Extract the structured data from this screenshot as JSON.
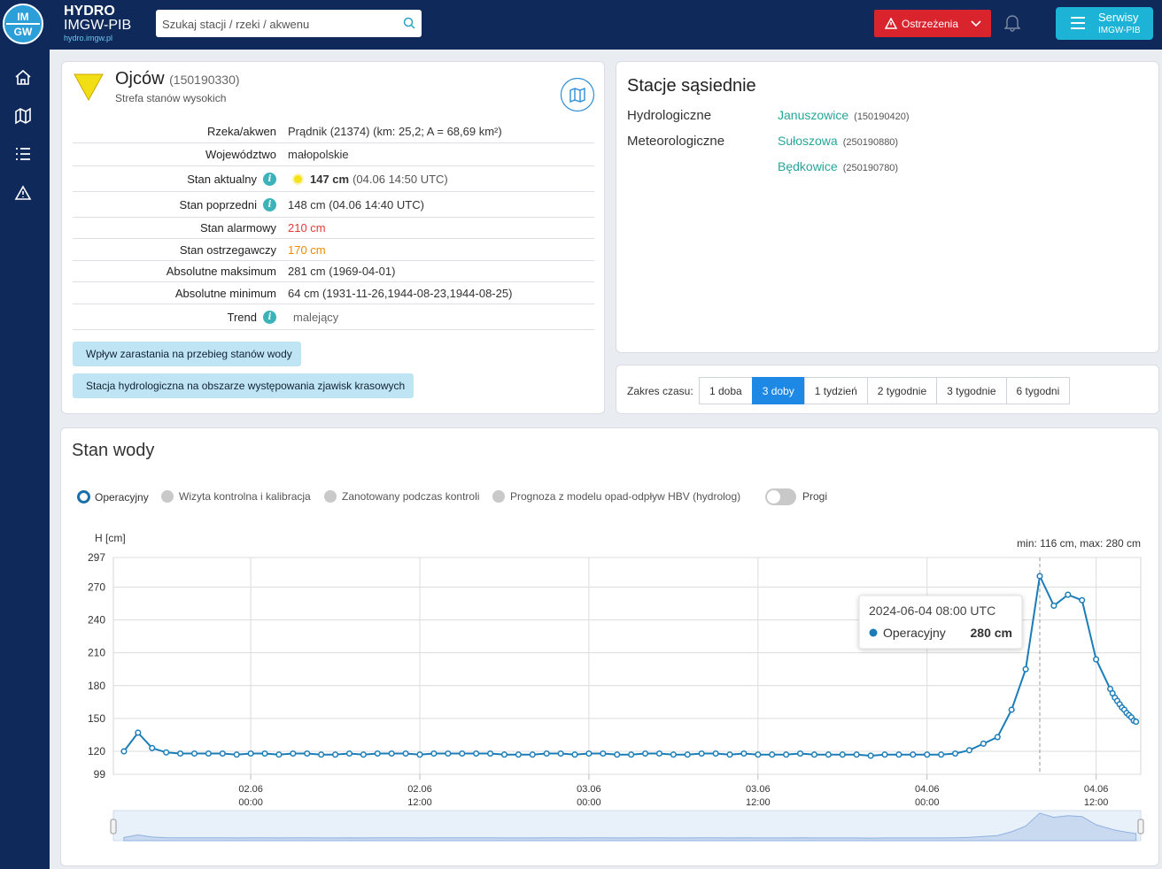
{
  "header": {
    "logo_mark": [
      "IM",
      "GW"
    ],
    "logo_line1": "HYDRO",
    "logo_line2": "IMGW-PIB",
    "logo_url": "hydro.imgw.pl",
    "search_placeholder": "Szukaj stacji / rzeki / akwenu",
    "warnings": "Ostrzeżenia",
    "services": "Serwisy",
    "services_sub": "IMGW-PIB"
  },
  "station": {
    "name": "Ojców",
    "id": "(150190330)",
    "zone": "Strefa stanów wysokich",
    "rows": [
      {
        "label": "Rzeka/akwen",
        "value": "Prądnik (21374) (km: 25,2; A = 68,69 km²)"
      },
      {
        "label": "Województwo",
        "value": "małopolskie"
      },
      {
        "label": "Stan aktualny",
        "value": "147 cm",
        "note": "(04.06 14:50 UTC)",
        "info": true,
        "marker": "#f5e11a"
      },
      {
        "label": "Stan poprzedni",
        "value": "148 cm (04.06 14:40 UTC)",
        "info": true
      },
      {
        "label": "Stan alarmowy",
        "value": "210 cm",
        "color": "#e53935"
      },
      {
        "label": "Stan ostrzegawczy",
        "value": "170 cm",
        "color": "#ef8a00"
      },
      {
        "label": "Absolutne maksimum",
        "value": "281 cm (1969-04-01)"
      },
      {
        "label": "Absolutne minimum",
        "value": "64 cm (1931-11-26,1944-08-23,1944-08-25)"
      },
      {
        "label": "Trend",
        "value": "malejący",
        "info": true,
        "trend_icon": true
      }
    ],
    "notices": [
      "Wpływ zarastania na przebieg stanów wody",
      "Stacja hydrologiczna na obszarze występowania zjawisk krasowych"
    ]
  },
  "neighbors": {
    "title": "Stacje sąsiednie",
    "groups": [
      {
        "label": "Hydrologiczne",
        "stations": [
          {
            "name": "Januszowice",
            "id": "(150190420)"
          }
        ]
      },
      {
        "label": "Meteorologiczne",
        "stations": [
          {
            "name": "Sułoszowa",
            "id": "(250190880)"
          },
          {
            "name": "Będkowice",
            "id": "(250190780)"
          }
        ]
      }
    ]
  },
  "time_range": {
    "label": "Zakres czasu:",
    "options": [
      "1 doba",
      "3 doby",
      "1 tydzień",
      "2 tygodnie",
      "3 tygodnie",
      "6 tygodni"
    ],
    "active": 1
  },
  "water_level": {
    "title": "Stan wody",
    "other_legend": [
      "Wizyta kontrolna i kalibracja",
      "Zanotowany podczas kontroli",
      "Prognoza z modelu opad-odpływ HBV (hydrolog)"
    ],
    "thresholds_toggle": "Progi"
  },
  "chart_data": {
    "type": "line",
    "y_label": "H [cm]",
    "range_note": "min: 116 cm, max: 280 cm",
    "xlim": [
      "2024-06-01 14:15",
      "2024-06-04 15:10"
    ],
    "xticks": [
      {
        "value": "2024-06-02 00:00",
        "label": [
          "02.06",
          "00:00"
        ]
      },
      {
        "value": "2024-06-02 12:00",
        "label": [
          "02.06",
          "12:00"
        ]
      },
      {
        "value": "2024-06-03 00:00",
        "label": [
          "03.06",
          "00:00"
        ]
      },
      {
        "value": "2024-06-03 12:00",
        "label": [
          "03.06",
          "12:00"
        ]
      },
      {
        "value": "2024-06-04 00:00",
        "label": [
          "04.06",
          "00:00"
        ]
      },
      {
        "value": "2024-06-04 12:00",
        "label": [
          "04.06",
          "12:00"
        ]
      }
    ],
    "ylim": [
      99,
      297
    ],
    "yticks": [
      99,
      120,
      150,
      180,
      210,
      240,
      270,
      297
    ],
    "grid": true,
    "x": [
      "2024-06-01 15:00",
      "2024-06-01 16:00",
      "2024-06-01 17:00",
      "2024-06-01 18:00",
      "2024-06-01 19:00",
      "2024-06-01 20:00",
      "2024-06-01 21:00",
      "2024-06-01 22:00",
      "2024-06-01 23:00",
      "2024-06-02 00:00",
      "2024-06-02 01:00",
      "2024-06-02 02:00",
      "2024-06-02 03:00",
      "2024-06-02 04:00",
      "2024-06-02 05:00",
      "2024-06-02 06:00",
      "2024-06-02 07:00",
      "2024-06-02 08:00",
      "2024-06-02 09:00",
      "2024-06-02 10:00",
      "2024-06-02 11:00",
      "2024-06-02 12:00",
      "2024-06-02 13:00",
      "2024-06-02 14:00",
      "2024-06-02 15:00",
      "2024-06-02 16:00",
      "2024-06-02 17:00",
      "2024-06-02 18:00",
      "2024-06-02 19:00",
      "2024-06-02 20:00",
      "2024-06-02 21:00",
      "2024-06-02 22:00",
      "2024-06-02 23:00",
      "2024-06-03 00:00",
      "2024-06-03 01:00",
      "2024-06-03 02:00",
      "2024-06-03 03:00",
      "2024-06-03 04:00",
      "2024-06-03 05:00",
      "2024-06-03 06:00",
      "2024-06-03 07:00",
      "2024-06-03 08:00",
      "2024-06-03 09:00",
      "2024-06-03 10:00",
      "2024-06-03 11:00",
      "2024-06-03 12:00",
      "2024-06-03 13:00",
      "2024-06-03 14:00",
      "2024-06-03 15:00",
      "2024-06-03 16:00",
      "2024-06-03 17:00",
      "2024-06-03 18:00",
      "2024-06-03 19:00",
      "2024-06-03 20:00",
      "2024-06-03 21:00",
      "2024-06-03 22:00",
      "2024-06-03 23:00",
      "2024-06-04 00:00",
      "2024-06-04 01:00",
      "2024-06-04 02:00",
      "2024-06-04 03:00",
      "2024-06-04 04:00",
      "2024-06-04 05:00",
      "2024-06-04 06:00",
      "2024-06-04 07:00",
      "2024-06-04 08:00",
      "2024-06-04 09:00",
      "2024-06-04 10:00",
      "2024-06-04 11:00",
      "2024-06-04 12:00",
      "2024-06-04 13:00",
      "2024-06-04 13:10",
      "2024-06-04 13:20",
      "2024-06-04 13:30",
      "2024-06-04 13:40",
      "2024-06-04 13:50",
      "2024-06-04 14:00",
      "2024-06-04 14:10",
      "2024-06-04 14:20",
      "2024-06-04 14:30",
      "2024-06-04 14:40",
      "2024-06-04 14:50"
    ],
    "series": [
      {
        "name": "Operacyjny",
        "color": "#1b7db8",
        "values": [
          120,
          137,
          123,
          119,
          118,
          118,
          118,
          118,
          117,
          118,
          118,
          117,
          118,
          118,
          117,
          117,
          118,
          117,
          118,
          118,
          118,
          117,
          118,
          118,
          118,
          118,
          118,
          117,
          117,
          117,
          118,
          118,
          117,
          118,
          118,
          117,
          117,
          118,
          118,
          117,
          117,
          118,
          118,
          117,
          118,
          117,
          117,
          117,
          118,
          117,
          117,
          117,
          117,
          116,
          117,
          117,
          117,
          117,
          117,
          118,
          121,
          127,
          133,
          158,
          195,
          280,
          253,
          263,
          258,
          204,
          177,
          173,
          169,
          166,
          163,
          160,
          158,
          155,
          153,
          151,
          148,
          147
        ]
      }
    ],
    "tooltip": {
      "title": "2024-06-04 08:00 UTC",
      "value_label": "280 cm"
    }
  }
}
